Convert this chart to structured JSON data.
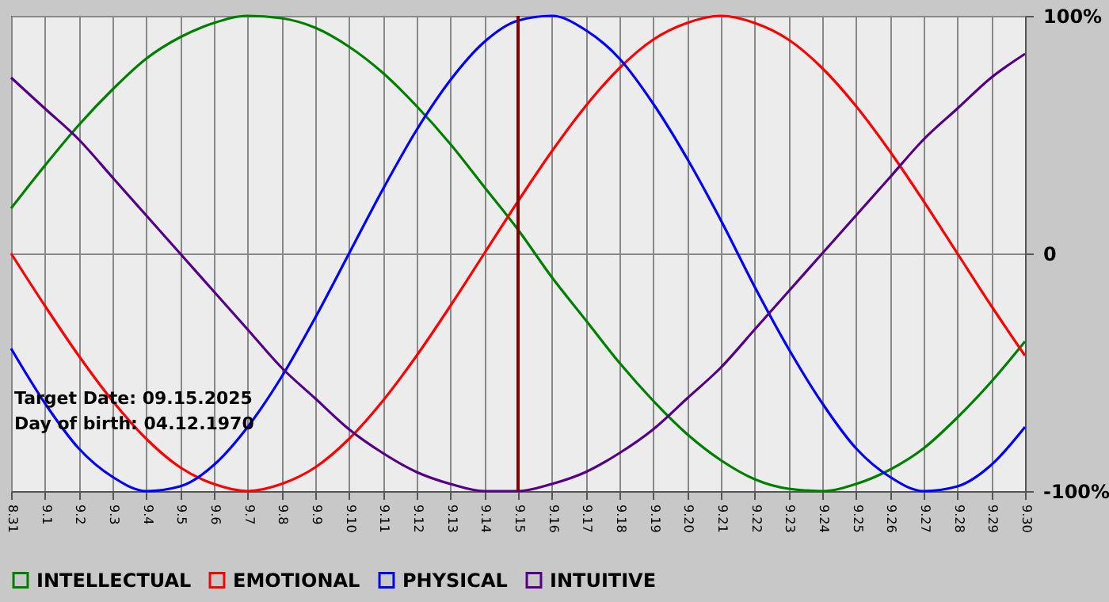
{
  "chart_data": {
    "type": "line",
    "categories": [
      "8.31",
      "9.1",
      "9.2",
      "9.3",
      "9.4",
      "9.5",
      "9.6",
      "9.7",
      "9.8",
      "9.9",
      "9.10",
      "9.11",
      "9.12",
      "9.13",
      "9.14",
      "9.15",
      "9.16",
      "9.17",
      "9.18",
      "9.19",
      "9.20",
      "9.21",
      "9.22",
      "9.23",
      "9.24",
      "9.25",
      "9.26",
      "9.27",
      "9.28",
      "9.29",
      "9.30"
    ],
    "series": [
      {
        "name": "INTELLECTUAL",
        "color": "#008000",
        "values": [
          19,
          37,
          54,
          69,
          82,
          91,
          97,
          100,
          99,
          95,
          87,
          76,
          62,
          46,
          28,
          10,
          -10,
          -28,
          -46,
          -62,
          -76,
          -87,
          -95,
          -99,
          -100,
          -97,
          -91,
          -82,
          -69,
          -54,
          -37
        ]
      },
      {
        "name": "EMOTIONAL",
        "color": "#ff0000",
        "values": [
          0,
          -22,
          -43,
          -62,
          -78,
          -90,
          -97,
          -100,
          -97,
          -90,
          -78,
          -62,
          -43,
          -22,
          0,
          22,
          43,
          62,
          78,
          90,
          97,
          100,
          97,
          90,
          78,
          62,
          43,
          22,
          0,
          -22,
          -43
        ]
      },
      {
        "name": "PHYSICAL",
        "color": "#0000ff",
        "values": [
          -40,
          -63,
          -82,
          -94,
          -100,
          -98,
          -89,
          -73,
          -52,
          -27,
          0,
          27,
          52,
          73,
          89,
          98,
          100,
          94,
          82,
          63,
          40,
          14,
          -14,
          -40,
          -63,
          -82,
          -94,
          -100,
          -98,
          -89,
          -73
        ]
      },
      {
        "name": "INTUITIVE",
        "color": "#550088",
        "values": [
          74,
          61,
          48,
          32,
          16,
          0,
          -16,
          -32,
          -48,
          -61,
          -74,
          -84,
          -92,
          -97,
          -100,
          -100,
          -97,
          -92,
          -84,
          -74,
          -61,
          -48,
          -32,
          -16,
          0,
          16,
          32,
          48,
          61,
          74,
          84
        ]
      }
    ],
    "ylim": [
      -100,
      100
    ],
    "yticks": [
      {
        "value": 100,
        "label": "100%"
      },
      {
        "value": 0,
        "label": "0"
      },
      {
        "value": -100,
        "label": "-100%"
      }
    ],
    "ref_lines": [
      {
        "axis": "x",
        "value": "9.15",
        "color": "#800000"
      }
    ],
    "annotations": [
      "Target Date: 09.15.2025",
      "Day of birth: 04.12.1970"
    ],
    "grid": true,
    "legend": "bottom",
    "marker": "none"
  }
}
